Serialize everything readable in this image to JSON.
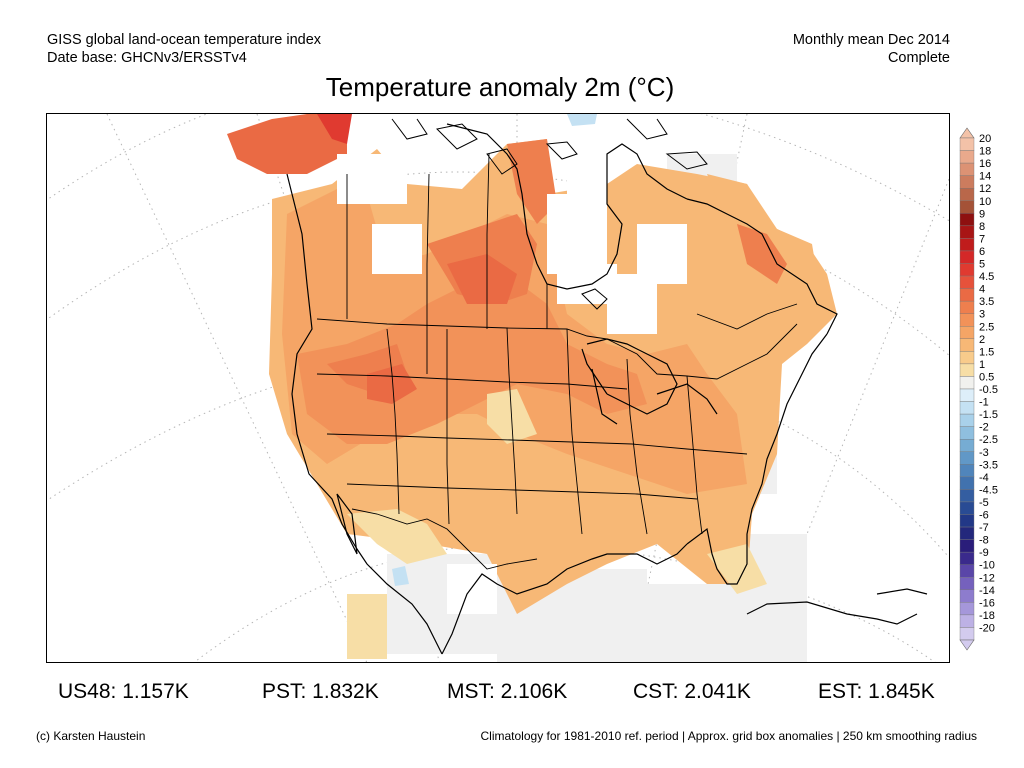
{
  "header": {
    "source_line1": "GISS global land-ocean temperature index",
    "source_line2": "Date base: GHCNv3/ERSSTv4",
    "period_line1": "Monthly mean Dec 2014",
    "period_line2": "Complete"
  },
  "title": "Temperature anomaly 2m (°C)",
  "legend": {
    "levels": [
      {
        "label": "20",
        "color": "#f3c2a8"
      },
      {
        "label": "18",
        "color": "#e9a98c"
      },
      {
        "label": "16",
        "color": "#dc9274"
      },
      {
        "label": "14",
        "color": "#cc7c5e"
      },
      {
        "label": "12",
        "color": "#b9674a"
      },
      {
        "label": "10",
        "color": "#a45237"
      },
      {
        "label": "9",
        "color": "#8e1010"
      },
      {
        "label": "8",
        "color": "#a81515"
      },
      {
        "label": "7",
        "color": "#c01c1c"
      },
      {
        "label": "6",
        "color": "#d42828"
      },
      {
        "label": "5",
        "color": "#e03a30"
      },
      {
        "label": "4.5",
        "color": "#e6523b"
      },
      {
        "label": "4",
        "color": "#ea6a44"
      },
      {
        "label": "3.5",
        "color": "#ee7f4e"
      },
      {
        "label": "3",
        "color": "#f29259"
      },
      {
        "label": "2.5",
        "color": "#f5a566"
      },
      {
        "label": "2",
        "color": "#f7b876"
      },
      {
        "label": "1.5",
        "color": "#f8cb8b"
      },
      {
        "label": "1",
        "color": "#f7dea6"
      },
      {
        "label": "0.5",
        "color": "#f1f1ee"
      },
      {
        "label": "-0.5",
        "color": "#ddeef9"
      },
      {
        "label": "-1",
        "color": "#c4e1f3"
      },
      {
        "label": "-1.5",
        "color": "#a9d1ea"
      },
      {
        "label": "-2",
        "color": "#8fbfdf"
      },
      {
        "label": "-2.5",
        "color": "#76acd3"
      },
      {
        "label": "-3",
        "color": "#6198c7"
      },
      {
        "label": "-3.5",
        "color": "#5085bb"
      },
      {
        "label": "-4",
        "color": "#4172ae"
      },
      {
        "label": "-4.5",
        "color": "#345ea1"
      },
      {
        "label": "-5",
        "color": "#294b94"
      },
      {
        "label": "-6",
        "color": "#223887"
      },
      {
        "label": "-7",
        "color": "#23287c"
      },
      {
        "label": "-8",
        "color": "#2a1d7a"
      },
      {
        "label": "-9",
        "color": "#3a2a8c"
      },
      {
        "label": "-10",
        "color": "#5a46a8"
      },
      {
        "label": "-12",
        "color": "#7561bd"
      },
      {
        "label": "-14",
        "color": "#8d7ccd"
      },
      {
        "label": "-16",
        "color": "#a597da"
      },
      {
        "label": "-18",
        "color": "#bdb1e5"
      },
      {
        "label": "-20",
        "color": "#d3cbee"
      }
    ]
  },
  "stats": {
    "us48": "US48: 1.157K",
    "pst": "PST: 1.832K",
    "mst": "MST: 2.106K",
    "cst": "CST: 2.041K",
    "est": "EST: 1.845K"
  },
  "footer": {
    "credit": "(c) Karsten Haustein",
    "note": "Climatology for 1981-2010 ref. period | Approx. grid box anomalies | 250 km smoothing radius"
  }
}
